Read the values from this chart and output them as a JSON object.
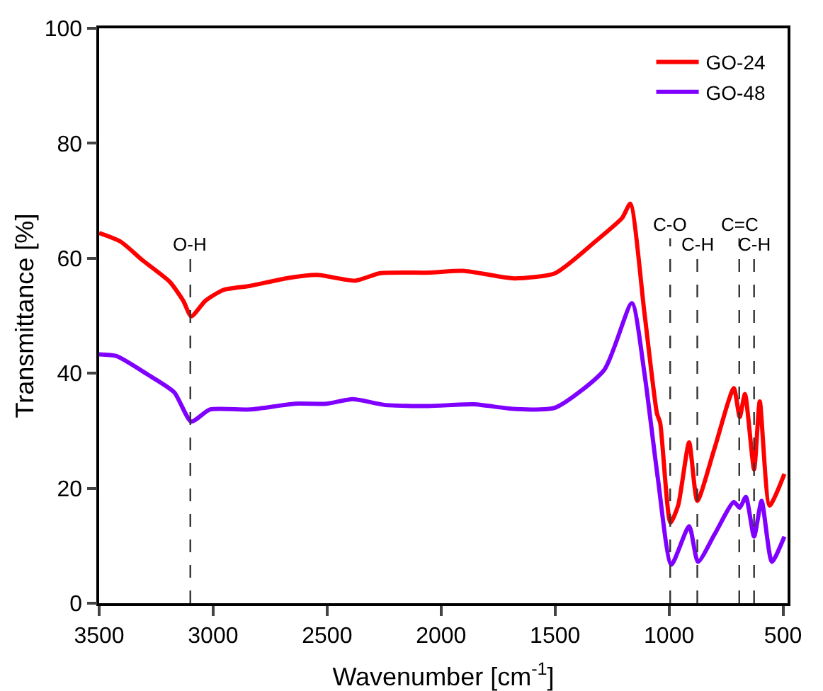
{
  "chart_data": {
    "type": "line",
    "xlabel": "Wavenumber [cm$^{-1}$]",
    "ylabel": "Transmittance [%]",
    "xlim": [
      3500,
      480
    ],
    "xticks": [
      3500,
      3000,
      2500,
      2000,
      1500,
      1000,
      500
    ],
    "ylim": [
      0,
      100
    ],
    "yticks": [
      0,
      20,
      40,
      60,
      80,
      100
    ],
    "grid": false,
    "legend": "top right",
    "marker": "none",
    "line_style": "solid",
    "series": [
      {
        "name": "GO-24",
        "color": "#ff0000",
        "x": [
          3500,
          3406,
          3308,
          3190,
          3131,
          3096,
          3034,
          2955,
          2837,
          2681,
          2544,
          2377,
          2269,
          2054,
          1897,
          1681,
          1500,
          1324,
          1206,
          1170,
          1108,
          1053,
          1039,
          994,
          960,
          912,
          876,
          800,
          716,
          690,
          667,
          627,
          602,
          559,
          494
        ],
        "values": [
          64.4,
          62.9,
          59.6,
          55.9,
          52.6,
          49.9,
          52.6,
          54.5,
          55.2,
          56.5,
          57.1,
          56.1,
          57.4,
          57.5,
          57.8,
          56.5,
          57.4,
          62.9,
          67,
          69.5,
          50.5,
          33,
          31.4,
          14,
          17,
          28,
          17.8,
          27,
          37.4,
          32.4,
          36.4,
          23.3,
          35.1,
          17,
          22.5
        ]
      },
      {
        "name": "GO-48",
        "color": "#8000ff",
        "x": [
          3500,
          3424,
          3288,
          3171,
          3096,
          3014,
          2837,
          2642,
          2504,
          2387,
          2249,
          2054,
          1857,
          1681,
          1500,
          1284,
          1163,
          1108,
          1049,
          990,
          912,
          873,
          800,
          716,
          690,
          663,
          627,
          594,
          549,
          494
        ],
        "values": [
          43.3,
          43,
          39.8,
          36.7,
          31.6,
          33.7,
          33.7,
          34.7,
          34.7,
          35.5,
          34.5,
          34.3,
          34.6,
          33.8,
          34,
          40.6,
          52.2,
          40,
          21.7,
          6.7,
          13.4,
          7.2,
          12,
          17.6,
          16.6,
          18.5,
          11.6,
          17.8,
          7.2,
          11.6
        ]
      }
    ],
    "ref_lines": [
      {
        "axis": "x",
        "value": 3100,
        "label": "O-H",
        "color": "#333333",
        "line_style": "dashed"
      },
      {
        "axis": "x",
        "value": 995,
        "label": "C-O",
        "color": "#333333",
        "line_style": "dashed"
      },
      {
        "axis": "x",
        "value": 876,
        "label": "C-H",
        "color": "#333333",
        "line_style": "dashed"
      },
      {
        "axis": "x",
        "value": 692,
        "label": "C=C",
        "color": "#333333",
        "line_style": "dashed"
      },
      {
        "axis": "x",
        "value": 627,
        "label": "C-H",
        "color": "#333333",
        "line_style": "dashed"
      }
    ]
  }
}
